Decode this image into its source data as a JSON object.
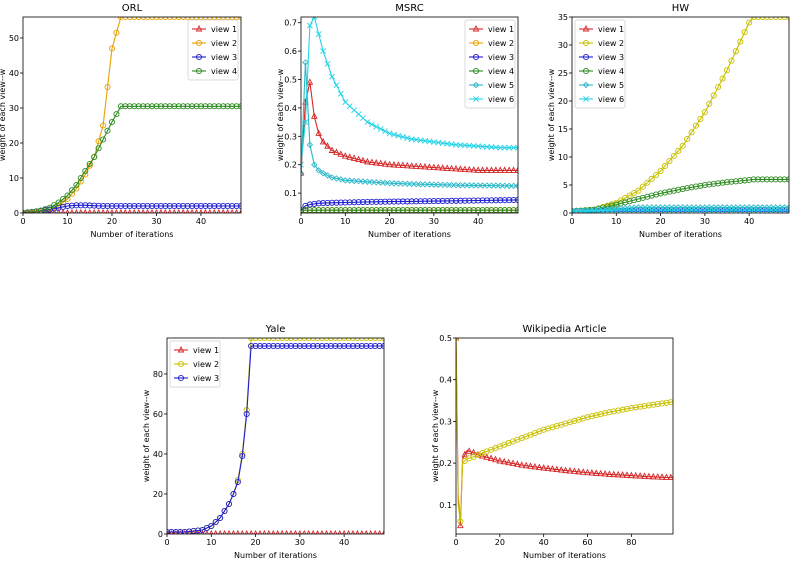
{
  "chart_data": [
    {
      "type": "line",
      "title": "ORL",
      "xlabel": "Number of iterations",
      "ylabel": "weight of each view--w",
      "xlim": [
        0,
        49
      ],
      "ylim": [
        0,
        56
      ],
      "xticks": [
        0,
        10,
        20,
        30,
        40
      ],
      "yticks": [
        0,
        10,
        20,
        30,
        40,
        50
      ],
      "legend": "top-right",
      "x": [
        0,
        2,
        4,
        6,
        8,
        10,
        12,
        14,
        16,
        18,
        20,
        22,
        24,
        30,
        40,
        49
      ],
      "series": [
        {
          "name": "view 1",
          "color": "#d62728",
          "marker": "triangle",
          "values": [
            0,
            0,
            0,
            0,
            0,
            0,
            0,
            0,
            0,
            0,
            0,
            0,
            0,
            0,
            0,
            0
          ]
        },
        {
          "name": "view 2",
          "color": "#e8a000",
          "marker": "circle",
          "values": [
            0,
            0.2,
            0.5,
            1,
            2,
            4,
            7,
            11,
            16,
            25,
            47,
            56,
            56,
            56,
            56,
            56
          ]
        },
        {
          "name": "view 3",
          "color": "#1f1fd0",
          "marker": "circle",
          "values": [
            0,
            0.3,
            0.6,
            1,
            1.5,
            2,
            2.2,
            2.2,
            2.1,
            2,
            2,
            2,
            2,
            2,
            2,
            2
          ]
        },
        {
          "name": "view 4",
          "color": "#2e8b22",
          "marker": "circle",
          "values": [
            0,
            0.3,
            0.7,
            1.5,
            3,
            5,
            8,
            12,
            16,
            21,
            26,
            30.5,
            30.5,
            30.5,
            30.5,
            30.5
          ]
        }
      ]
    },
    {
      "type": "line",
      "title": "MSRC",
      "xlabel": "Number of iterations",
      "ylabel": "weight of each view--w",
      "xlim": [
        0,
        49
      ],
      "ylim": [
        0.03,
        0.72
      ],
      "xticks": [
        0,
        10,
        20,
        30,
        40
      ],
      "yticks": [
        0.1,
        0.2,
        0.3,
        0.4,
        0.5,
        0.6,
        0.7
      ],
      "legend": "top-right",
      "x": [
        0,
        1,
        2,
        3,
        4,
        5,
        7,
        10,
        15,
        20,
        25,
        30,
        35,
        40,
        45,
        49
      ],
      "series": [
        {
          "name": "view 1",
          "color": "#d62728",
          "marker": "triangle",
          "values": [
            0.17,
            0.42,
            0.49,
            0.37,
            0.31,
            0.28,
            0.25,
            0.23,
            0.21,
            0.2,
            0.195,
            0.19,
            0.185,
            0.18,
            0.18,
            0.18
          ]
        },
        {
          "name": "view 2",
          "color": "#e8a000",
          "marker": "circle",
          "values": [
            0.04,
            0.04,
            0.04,
            0.04,
            0.04,
            0.04,
            0.04,
            0.04,
            0.04,
            0.04,
            0.04,
            0.04,
            0.04,
            0.04,
            0.04,
            0.04
          ]
        },
        {
          "name": "view 3",
          "color": "#1f1fd0",
          "marker": "circle",
          "values": [
            0.04,
            0.055,
            0.06,
            0.062,
            0.064,
            0.065,
            0.066,
            0.067,
            0.069,
            0.07,
            0.071,
            0.072,
            0.073,
            0.074,
            0.075,
            0.076
          ]
        },
        {
          "name": "view 4",
          "color": "#2e8b22",
          "marker": "circle",
          "values": [
            0.04,
            0.04,
            0.04,
            0.04,
            0.04,
            0.04,
            0.04,
            0.04,
            0.04,
            0.04,
            0.04,
            0.04,
            0.04,
            0.04,
            0.04,
            0.04
          ]
        },
        {
          "name": "view 5",
          "color": "#2bb8c8",
          "marker": "diamond",
          "values": [
            0.17,
            0.56,
            0.27,
            0.2,
            0.18,
            0.17,
            0.155,
            0.145,
            0.14,
            0.135,
            0.132,
            0.13,
            0.128,
            0.127,
            0.126,
            0.125
          ]
        },
        {
          "name": "view 6",
          "color": "#22d3e6",
          "marker": "x",
          "values": [
            0.2,
            0.35,
            0.69,
            0.72,
            0.66,
            0.6,
            0.51,
            0.42,
            0.35,
            0.31,
            0.29,
            0.28,
            0.27,
            0.265,
            0.26,
            0.26
          ]
        }
      ]
    },
    {
      "type": "line",
      "title": "HW",
      "xlabel": "Number of iterations",
      "ylabel": "weight of each view--w",
      "xlim": [
        0,
        49
      ],
      "ylim": [
        0,
        35
      ],
      "xticks": [
        0,
        10,
        20,
        30,
        40
      ],
      "yticks": [
        0,
        5,
        10,
        15,
        20,
        25,
        30,
        35
      ],
      "legend": "top-left",
      "x": [
        0,
        5,
        10,
        15,
        20,
        25,
        30,
        35,
        40,
        41,
        45,
        49
      ],
      "series": [
        {
          "name": "view 1",
          "color": "#d62728",
          "marker": "triangle",
          "values": [
            0.3,
            0.3,
            0.3,
            0.3,
            0.3,
            0.3,
            0.3,
            0.3,
            0.3,
            0.3,
            0.3,
            0.3
          ]
        },
        {
          "name": "view 2",
          "color": "#c8c000",
          "marker": "circle",
          "values": [
            0.3,
            0.6,
            1.8,
            4,
            7.5,
            12,
            18,
            25.5,
            34,
            35,
            35,
            35
          ]
        },
        {
          "name": "view 3",
          "color": "#1f1fd0",
          "marker": "circle",
          "values": [
            0.3,
            0.3,
            0.3,
            0.3,
            0.3,
            0.3,
            0.3,
            0.3,
            0.3,
            0.3,
            0.3,
            0.3
          ]
        },
        {
          "name": "view 4",
          "color": "#2e8b22",
          "marker": "circle",
          "values": [
            0.3,
            0.6,
            1.5,
            2.5,
            3.5,
            4.3,
            5,
            5.5,
            5.9,
            6,
            6,
            6
          ]
        },
        {
          "name": "view 5",
          "color": "#2bb8c8",
          "marker": "diamond",
          "values": [
            0.3,
            0.5,
            0.8,
            1,
            1,
            1,
            1,
            1,
            1,
            1,
            1,
            1
          ]
        },
        {
          "name": "view 6",
          "color": "#22d3e6",
          "marker": "x",
          "values": [
            0.3,
            0.4,
            0.5,
            0.5,
            0.5,
            0.5,
            0.5,
            0.5,
            0.5,
            0.5,
            0.5,
            0.5
          ]
        }
      ]
    },
    {
      "type": "line",
      "title": "Yale",
      "xlabel": "Number of iterations",
      "ylabel": "weight of each view--w",
      "xlim": [
        0,
        49
      ],
      "ylim": [
        0,
        98
      ],
      "xticks": [
        0,
        10,
        20,
        30,
        40
      ],
      "yticks": [
        0,
        20,
        40,
        60,
        80
      ],
      "legend": "top-left",
      "x": [
        0,
        2,
        4,
        6,
        8,
        10,
        12,
        14,
        15,
        16,
        17,
        18,
        19,
        20,
        30,
        40,
        49
      ],
      "series": [
        {
          "name": "view 1",
          "color": "#d62728",
          "marker": "triangle",
          "values": [
            0,
            0,
            0,
            0,
            0,
            0,
            0,
            0,
            0,
            0,
            0,
            0,
            0,
            0,
            0,
            0,
            0
          ]
        },
        {
          "name": "view 2",
          "color": "#c8c000",
          "marker": "circle",
          "values": [
            1,
            1,
            1,
            1.5,
            2,
            4,
            8,
            15,
            20,
            27,
            40,
            62,
            98,
            98,
            98,
            98,
            98
          ]
        },
        {
          "name": "view 3",
          "color": "#1f1fd0",
          "marker": "circle",
          "values": [
            1,
            1,
            1,
            1.5,
            2,
            4,
            8,
            15,
            20,
            26,
            39,
            60,
            94,
            94,
            94,
            94,
            94
          ]
        }
      ]
    },
    {
      "type": "line",
      "title": "Wikipedia Article",
      "xlabel": "Number of iterations",
      "ylabel": "weight of each view--w",
      "xlim": [
        0,
        99
      ],
      "ylim": [
        0.03,
        0.5
      ],
      "xticks": [
        0,
        20,
        40,
        60,
        80
      ],
      "yticks": [
        0.1,
        0.2,
        0.3,
        0.4,
        0.5
      ],
      "legend": "none",
      "x": [
        0,
        1,
        2,
        3,
        5,
        8,
        10,
        20,
        30,
        40,
        50,
        60,
        70,
        80,
        90,
        99
      ],
      "series": [
        {
          "name": "",
          "color": "#d62728",
          "marker": "triangle",
          "values": [
            0.5,
            0.12,
            0.05,
            0.21,
            0.23,
            0.225,
            0.22,
            0.205,
            0.195,
            0.188,
            0.182,
            0.177,
            0.173,
            0.17,
            0.167,
            0.165
          ]
        },
        {
          "name": "",
          "color": "#c8c000",
          "marker": "circle",
          "values": [
            0.5,
            0.1,
            0.06,
            0.2,
            0.21,
            0.215,
            0.22,
            0.24,
            0.26,
            0.28,
            0.295,
            0.31,
            0.322,
            0.332,
            0.34,
            0.347
          ]
        }
      ]
    }
  ]
}
